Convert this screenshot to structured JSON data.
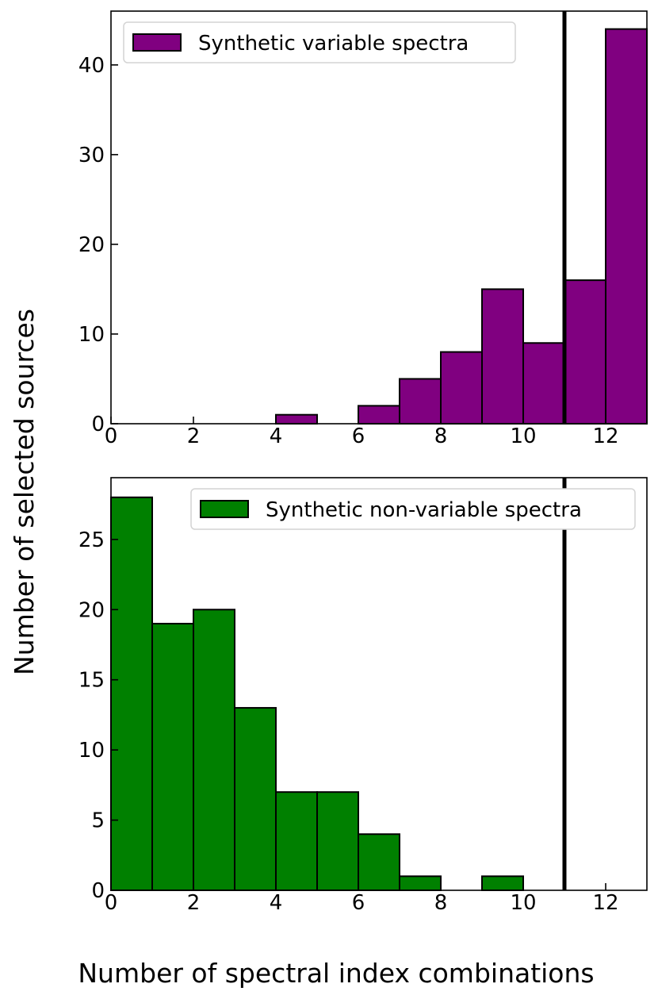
{
  "figure": {
    "ylabel": "Number of selected sources",
    "xlabel": "Number of spectral index combinations"
  },
  "chart_data": [
    {
      "type": "bar",
      "histogram": true,
      "bin_edges": [
        0,
        1,
        2,
        3,
        4,
        5,
        6,
        7,
        8,
        9,
        10,
        11,
        12,
        13
      ],
      "values": [
        0,
        0,
        0,
        0,
        1,
        0,
        2,
        5,
        8,
        15,
        9,
        16,
        44
      ],
      "series_name": "Synthetic variable spectra",
      "color": "#800080",
      "edge_color": "#000000",
      "xlim": [
        0,
        13
      ],
      "ylim": [
        0,
        46
      ],
      "xticks": [
        0,
        2,
        4,
        6,
        8,
        10,
        12
      ],
      "xtick_labels": [
        "0",
        "2",
        "4",
        "6",
        "8",
        "10",
        "12"
      ],
      "yticks": [
        0,
        10,
        20,
        30,
        40
      ],
      "ytick_labels": [
        "0",
        "10",
        "20",
        "30",
        "40"
      ],
      "vline_x": 11,
      "legend_position": "upper-left",
      "grid": false
    },
    {
      "type": "bar",
      "histogram": true,
      "bin_edges": [
        0,
        1,
        2,
        3,
        4,
        5,
        6,
        7,
        8,
        9,
        10,
        11,
        12,
        13
      ],
      "values": [
        28,
        19,
        20,
        13,
        7,
        7,
        4,
        1,
        0,
        1,
        0,
        0,
        0
      ],
      "series_name": "Synthetic non-variable spectra",
      "color": "#008000",
      "edge_color": "#000000",
      "xlim": [
        0,
        13
      ],
      "ylim": [
        0,
        29.4
      ],
      "xticks": [
        0,
        2,
        4,
        6,
        8,
        10,
        12
      ],
      "xtick_labels": [
        "0",
        "2",
        "4",
        "6",
        "8",
        "10",
        "12"
      ],
      "yticks": [
        0,
        5,
        10,
        15,
        20,
        25
      ],
      "ytick_labels": [
        "0",
        "5",
        "10",
        "15",
        "20",
        "25"
      ],
      "vline_x": 11,
      "legend_position": "upper-right",
      "grid": false
    }
  ]
}
